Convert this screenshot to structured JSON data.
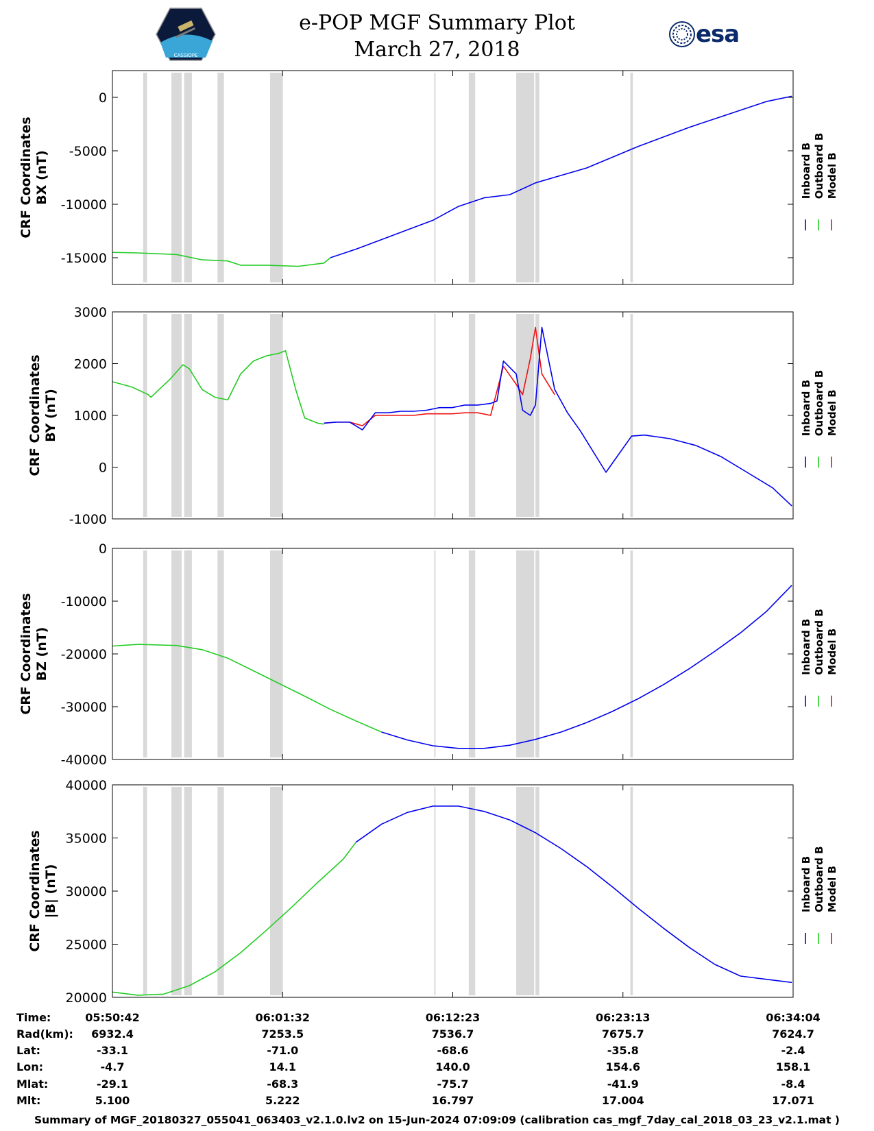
{
  "header": {
    "title": "e-POP MGF Summary Plot",
    "date": "March 27, 2018",
    "esa_label": "esa",
    "mission_logo_text": "CASSIOPE"
  },
  "legend": {
    "entries": [
      {
        "name": "Inboard B",
        "color": "#0000ee"
      },
      {
        "name": "Outboard B",
        "color": "#22cc22"
      },
      {
        "name": "Model B",
        "color": "#ee1111"
      }
    ]
  },
  "colors": {
    "inboard": "#0000ee",
    "outboard": "#22cc22",
    "model": "#ee1111",
    "shade": "#d9d9d9"
  },
  "chart_data": [
    {
      "type": "line",
      "ylabel": [
        "CRF Coordinates",
        "BX (nT)"
      ],
      "ylim": [
        -17500,
        2500
      ],
      "yticks": [
        0,
        -5000,
        -10000,
        -15000
      ],
      "xlim_seconds": [
        0,
        2602
      ],
      "series": [
        {
          "name": "Outboard B",
          "x": [
            0,
            200,
            500,
            700,
            900,
            1000,
            1200,
            1450,
            1650,
            1700
          ],
          "y": [
            -14500,
            -14550,
            -14700,
            -15200,
            -15300,
            -15700,
            -15700,
            -15800,
            -15500,
            -15000
          ]
        },
        {
          "name": "Inboard B",
          "x": [
            1700,
            1900,
            2100,
            2300,
            2500,
            2700,
            2900,
            3100,
            3300,
            3500,
            3700,
            3900,
            4100,
            4300,
            4500,
            4700,
            4900,
            5100,
            5300
          ],
          "y": [
            -15000,
            -14200,
            -13300,
            -12400,
            -11500,
            -10200,
            -9400,
            -9100,
            -8000,
            -7300,
            -6600,
            -5600,
            -4600,
            -3700,
            -2800,
            -2000,
            -1200,
            -400,
            100
          ]
        }
      ],
      "shaded_intervals": [
        [
          240,
          270
        ],
        [
          460,
          540
        ],
        [
          560,
          620
        ],
        [
          820,
          870
        ],
        [
          1230,
          1330
        ],
        [
          2510,
          2520
        ],
        [
          2780,
          2830
        ],
        [
          3150,
          3290
        ],
        [
          3300,
          3330
        ],
        [
          4040,
          4060
        ]
      ]
    },
    {
      "type": "line",
      "ylabel": [
        "CRF Coordinates",
        "BY (nT)"
      ],
      "ylim": [
        -1000,
        3000
      ],
      "yticks": [
        3000,
        2000,
        1000,
        0,
        -1000
      ],
      "series": [
        {
          "name": "Outboard B",
          "x": [
            0,
            150,
            280,
            300,
            450,
            550,
            600,
            700,
            800,
            900,
            1000,
            1100,
            1200,
            1300,
            1350,
            1430,
            1500,
            1600,
            1650
          ],
          "y": [
            1650,
            1550,
            1400,
            1350,
            1700,
            1980,
            1900,
            1500,
            1350,
            1300,
            1800,
            2050,
            2150,
            2200,
            2250,
            1500,
            950,
            850,
            830
          ]
        },
        {
          "name": "Model B",
          "x": [
            1650,
            1750,
            1850,
            1950,
            2050,
            2150,
            2250,
            2350,
            2450,
            2550,
            2650,
            2750,
            2850,
            2950,
            3050,
            3150,
            3200,
            3260,
            3300,
            3350,
            3450
          ],
          "y": [
            850,
            870,
            870,
            800,
            1000,
            1000,
            1000,
            1000,
            1030,
            1030,
            1030,
            1050,
            1050,
            1000,
            1950,
            1600,
            1400,
            2100,
            2700,
            1800,
            1400
          ]
        },
        {
          "name": "Inboard B",
          "x": [
            1650,
            1750,
            1850,
            1950,
            2050,
            2150,
            2250,
            2350,
            2450,
            2550,
            2650,
            2750,
            2850,
            2950,
            3000,
            3050,
            3150,
            3200,
            3260,
            3300,
            3350,
            3450,
            3550,
            3650,
            3850,
            4050,
            4150,
            4350,
            4550,
            4750,
            4950,
            5150,
            5300
          ],
          "y": [
            850,
            870,
            870,
            720,
            1050,
            1050,
            1080,
            1080,
            1100,
            1150,
            1150,
            1200,
            1200,
            1230,
            1280,
            2050,
            1800,
            1100,
            1000,
            1200,
            2700,
            1500,
            1050,
            700,
            -100,
            600,
            620,
            550,
            420,
            200,
            -100,
            -400,
            -750
          ]
        }
      ]
    },
    {
      "type": "line",
      "ylabel": [
        "CRF Coordinates",
        "BZ (nT)"
      ],
      "ylim": [
        -40000,
        0
      ],
      "yticks": [
        0,
        -10000,
        -20000,
        -30000,
        -40000
      ],
      "series": [
        {
          "name": "Outboard B",
          "x": [
            0,
            200,
            500,
            700,
            900,
            1100,
            1300,
            1500,
            1700,
            1900,
            2100
          ],
          "y": [
            -18500,
            -18200,
            -18400,
            -19200,
            -20800,
            -23200,
            -25600,
            -28000,
            -30500,
            -32700,
            -34800
          ]
        },
        {
          "name": "Inboard B",
          "x": [
            2100,
            2300,
            2500,
            2700,
            2900,
            3100,
            3300,
            3500,
            3700,
            3900,
            4100,
            4300,
            4500,
            4700,
            4900,
            5100,
            5300
          ],
          "y": [
            -34800,
            -36300,
            -37400,
            -37900,
            -37900,
            -37300,
            -36200,
            -34800,
            -33000,
            -30900,
            -28500,
            -25800,
            -22800,
            -19500,
            -16000,
            -12000,
            -7000
          ]
        }
      ]
    },
    {
      "type": "line",
      "ylabel": [
        "CRF Coordinates",
        "|B| (nT)"
      ],
      "ylim": [
        20000,
        40000
      ],
      "yticks": [
        40000,
        35000,
        30000,
        25000,
        20000
      ],
      "series": [
        {
          "name": "Outboard B",
          "x": [
            0,
            200,
            400,
            600,
            800,
            1000,
            1200,
            1400,
            1600,
            1800,
            1900
          ],
          "y": [
            20500,
            20200,
            20300,
            21100,
            22400,
            24200,
            26300,
            28500,
            30800,
            33000,
            34600
          ]
        },
        {
          "name": "Inboard B",
          "x": [
            1900,
            2100,
            2300,
            2500,
            2700,
            2900,
            3100,
            3300,
            3500,
            3700,
            3900,
            4100,
            4300,
            4500,
            4700,
            4900,
            5100,
            5300
          ],
          "y": [
            34600,
            36300,
            37400,
            38000,
            38000,
            37500,
            36700,
            35500,
            34000,
            32300,
            30400,
            28400,
            26500,
            24700,
            23100,
            22000,
            21700,
            21400
          ]
        }
      ]
    }
  ],
  "ephemeris": {
    "row_labels": [
      "Time:",
      "Rad(km):",
      "Lat:",
      "Lon:",
      "Mlat:",
      "Mlt:"
    ],
    "columns": [
      [
        "05:50:42",
        "6932.4",
        "-33.1",
        "-4.7",
        "-29.1",
        "5.100"
      ],
      [
        "06:01:32",
        "7253.5",
        "-71.0",
        "14.1",
        "-68.3",
        "5.222"
      ],
      [
        "06:12:23",
        "7536.7",
        "-68.6",
        "140.0",
        "-75.7",
        "16.797"
      ],
      [
        "06:23:13",
        "7675.7",
        "-35.8",
        "154.6",
        "-41.9",
        "17.004"
      ],
      [
        "06:34:04",
        "7624.7",
        "-2.4",
        "158.1",
        "-8.4",
        "17.071"
      ]
    ]
  },
  "footer": "Summary of MGF_20180327_055041_063403_v2.1.0.lv2 on 15-Jun-2024 07:09:09 (calibration cas_mgf_7day_cal_2018_03_23_v2.1.mat )"
}
